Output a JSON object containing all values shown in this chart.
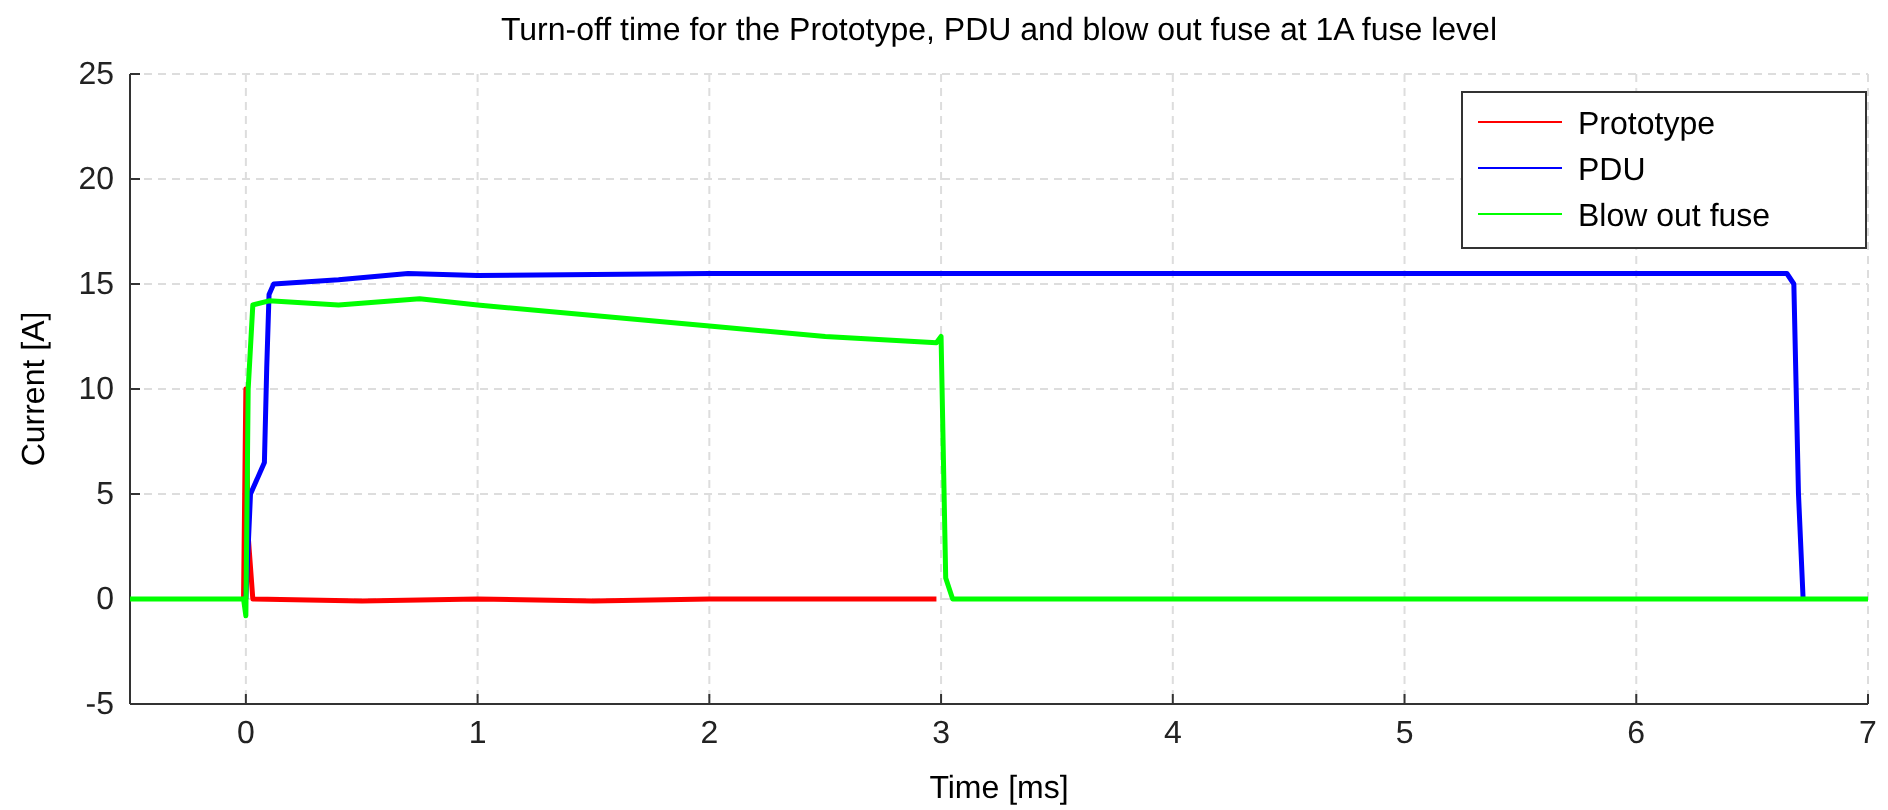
{
  "chart_data": {
    "type": "line",
    "title": "Turn-off time for the Prototype, PDU and blow out fuse at 1A fuse level",
    "xlabel": "Time [ms]",
    "ylabel": "Current [A]",
    "xlim": [
      -0.5,
      7
    ],
    "xticks": [
      0,
      1,
      2,
      3,
      4,
      5,
      6,
      7
    ],
    "ylim": [
      -5,
      25
    ],
    "yticks": [
      -5,
      0,
      5,
      10,
      15,
      20,
      25
    ],
    "grid": true,
    "legend": "top right",
    "line_style": "solid",
    "series": [
      {
        "name": "Prototype",
        "color": "#ff0000",
        "x": [
          -0.01,
          0.0,
          0.01,
          0.03,
          0.5,
          1,
          1.5,
          2,
          2.5,
          2.98
        ],
        "values": [
          0,
          10,
          3,
          0,
          -0.1,
          0,
          -0.1,
          0,
          0,
          0
        ]
      },
      {
        "name": "PDU",
        "color": "#0000ff",
        "x": [
          0.0,
          0.02,
          0.06,
          0.08,
          0.09,
          0.1,
          0.12,
          0.4,
          0.7,
          1.0,
          2,
          3,
          4,
          5,
          6,
          6.65,
          6.68,
          6.7,
          6.72
        ],
        "values": [
          0,
          5,
          6,
          6.5,
          11,
          14.5,
          15,
          15.2,
          15.5,
          15.4,
          15.5,
          15.5,
          15.5,
          15.5,
          15.5,
          15.5,
          15,
          5,
          0
        ]
      },
      {
        "name": "Blow out fuse",
        "color": "#00ff00",
        "x": [
          -0.5,
          -0.01,
          0.0,
          0.01,
          0.03,
          0.1,
          0.4,
          0.75,
          1.0,
          1.5,
          2,
          2.5,
          2.98,
          3.0,
          3.02,
          3.05,
          4,
          5,
          6,
          7
        ],
        "values": [
          0,
          0,
          -0.8,
          10,
          14,
          14.2,
          14.0,
          14.3,
          14.0,
          13.5,
          13,
          12.5,
          12.2,
          12.5,
          1,
          0,
          0,
          0,
          0,
          0
        ]
      }
    ]
  }
}
